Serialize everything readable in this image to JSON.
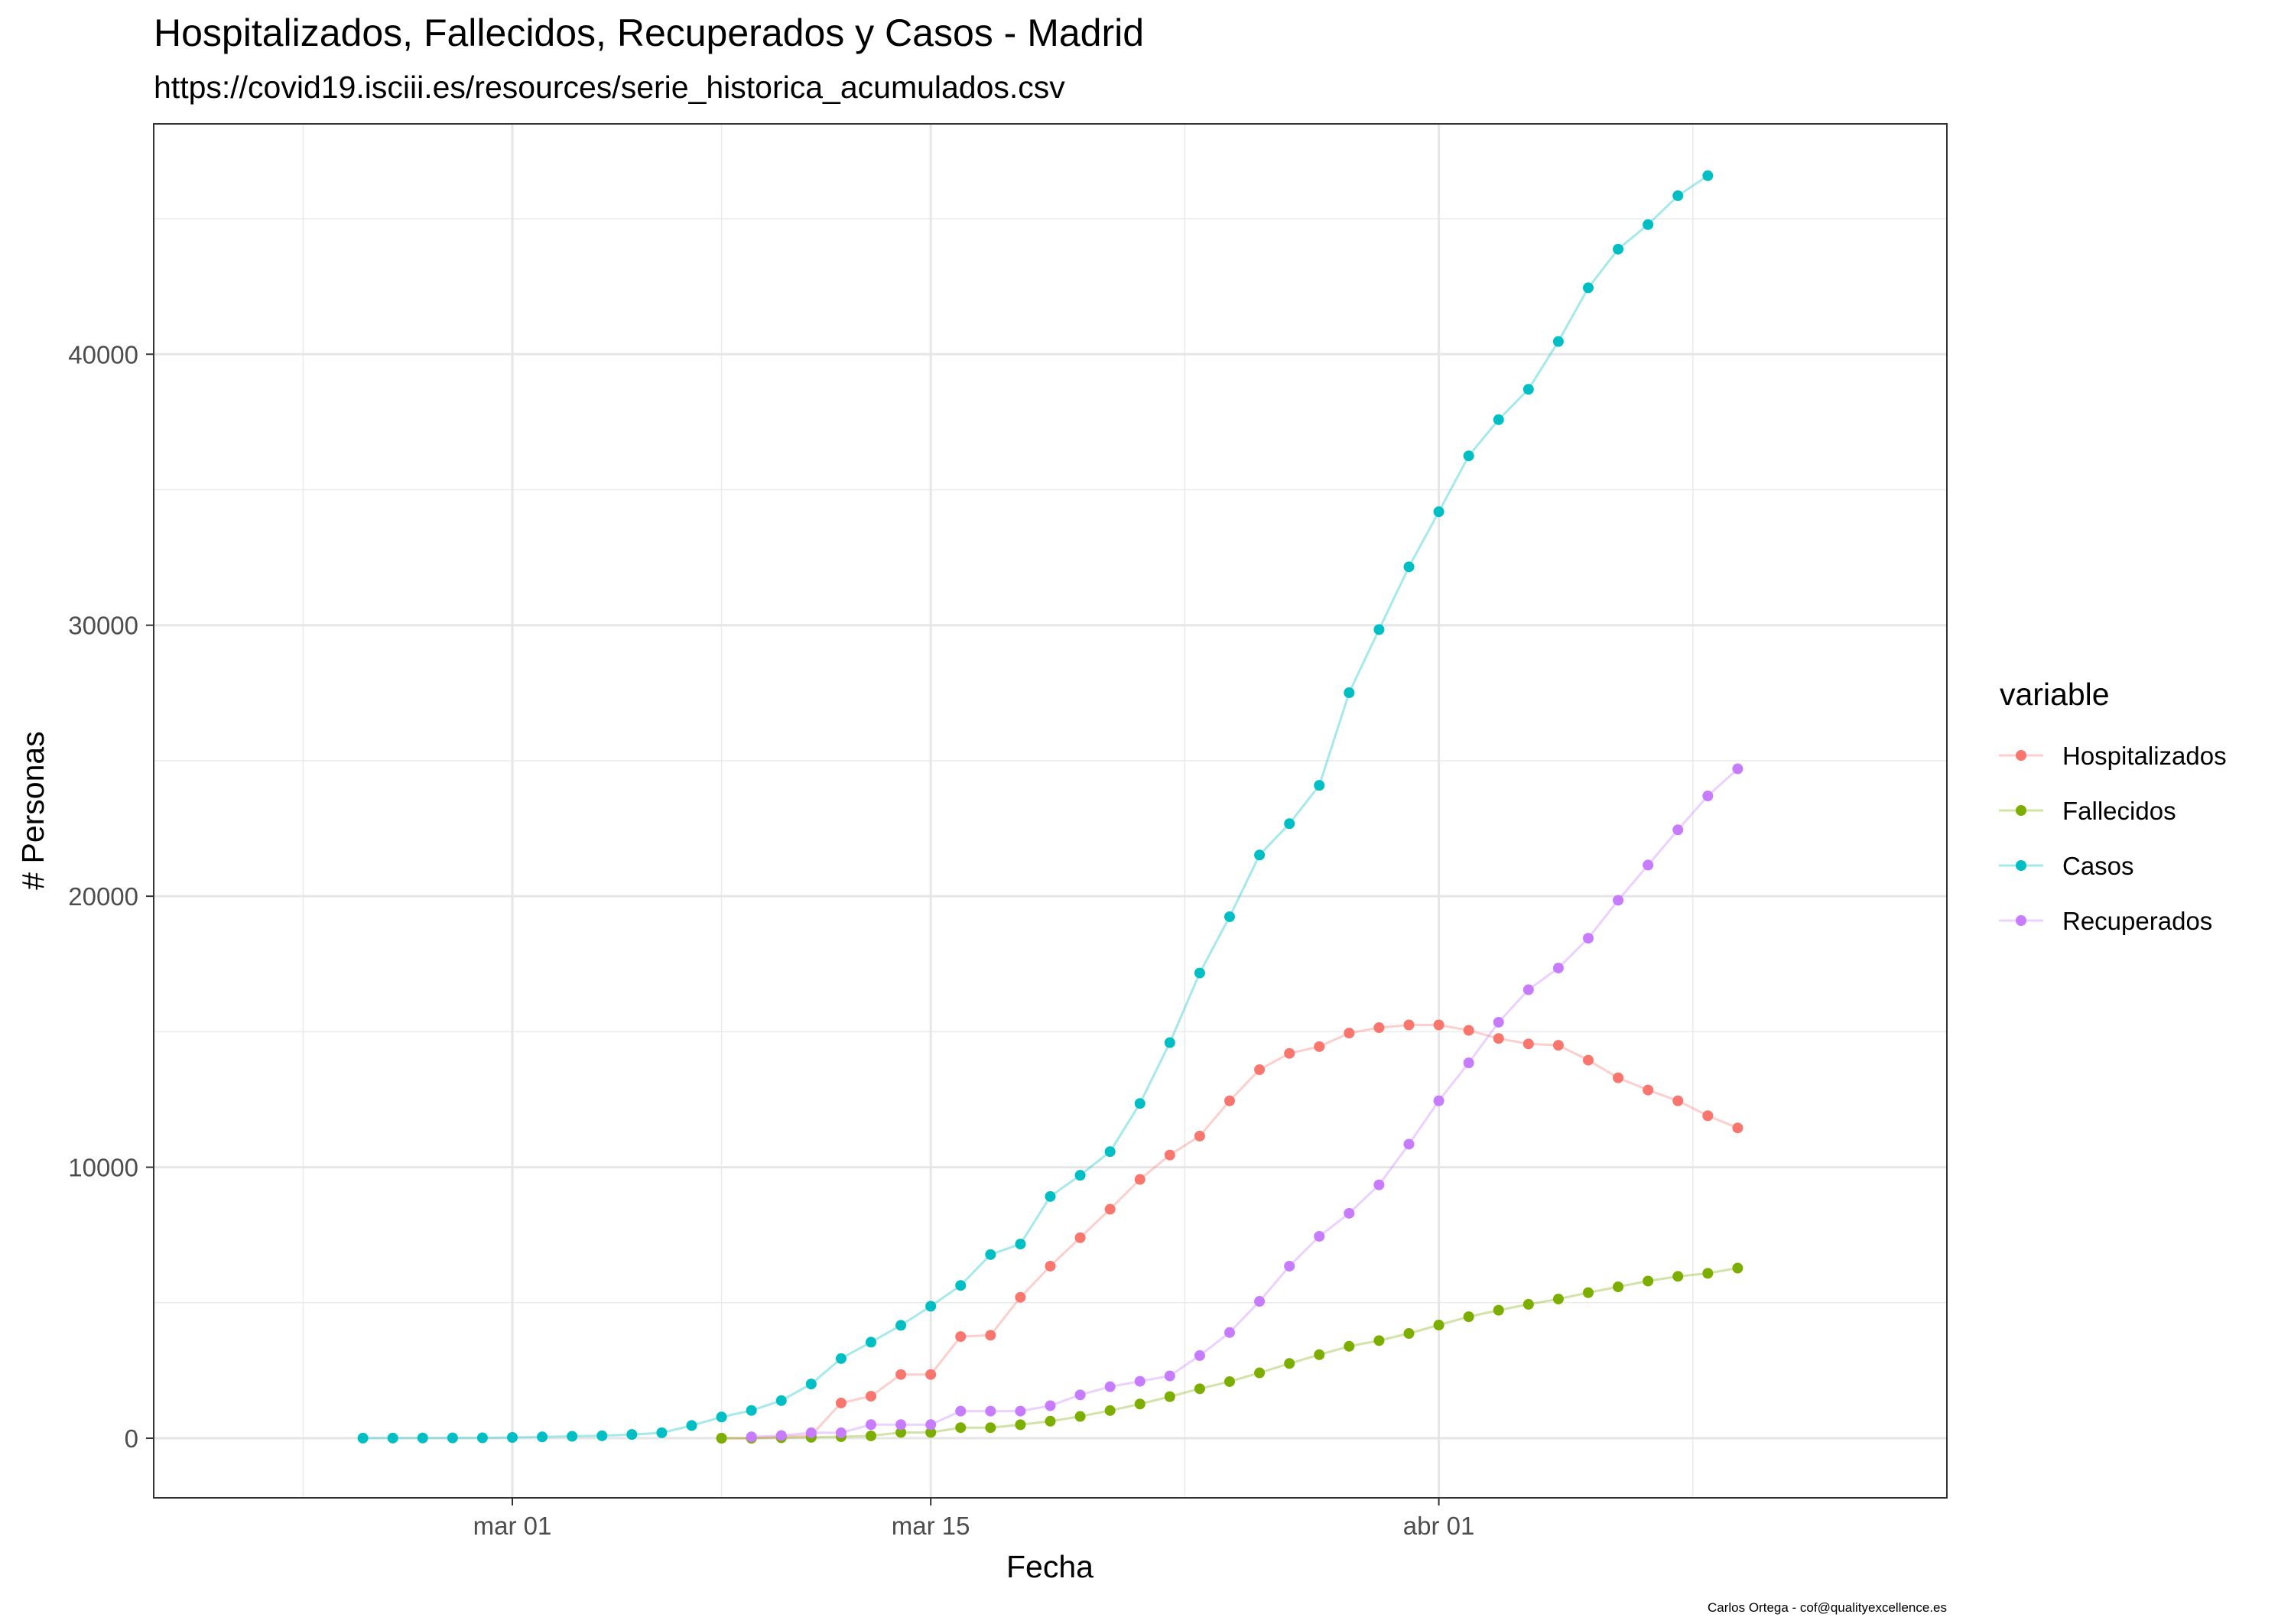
{
  "chart_data": {
    "type": "line",
    "title": "Hospitalizados, Fallecidos, Recuperados y Casos - Madrid",
    "subtitle": "https://covid19.isciii.es/resources/serie_historica_acumulados.csv",
    "xlabel": "Fecha",
    "ylabel": "# Personas",
    "caption": "Carlos Ortega - cof@qualityexcellence.es",
    "legend_title": "variable",
    "legend_position": "right",
    "grid": true,
    "x_ticks": [
      {
        "date": "2020-03-01",
        "label": "mar 01"
      },
      {
        "date": "2020-03-15",
        "label": "mar 15"
      },
      {
        "date": "2020-04-01",
        "label": "abr 01"
      }
    ],
    "x_range": [
      "2020-02-18",
      "2020-04-18"
    ],
    "ylim": [
      -2200,
      48500
    ],
    "y_ticks": [
      0,
      10000,
      20000,
      30000,
      40000
    ],
    "series": [
      {
        "name": "Hospitalizados",
        "color": "#F8766D",
        "start": "2020-03-08",
        "values": [
          0,
          0,
          50,
          100,
          1300,
          1550,
          2350,
          2350,
          3750,
          3800,
          5200,
          6350,
          7400,
          8450,
          9550,
          10450,
          11150,
          12450,
          13600,
          14200,
          14450,
          14950,
          15150,
          15250,
          15250,
          15050,
          14750,
          14550,
          14500,
          13950,
          13300,
          12850,
          12450,
          11900,
          11450
        ]
      },
      {
        "name": "Fallecidos",
        "color": "#7CAE00",
        "start": "2020-03-08",
        "values": [
          0,
          0,
          16,
          31,
          56,
          86,
          213,
          213,
          390,
          390,
          498,
          628,
          804,
          1021,
          1263,
          1535,
          1825,
          2090,
          2412,
          2757,
          3082,
          3392,
          3603,
          3865,
          4175,
          4483,
          4723,
          4941,
          5136,
          5371,
          5586,
          5800,
          5972,
          6084,
          6278
        ]
      },
      {
        "name": "Casos",
        "color": "#00BFC4",
        "start": "2020-02-25",
        "values": [
          3,
          5,
          8,
          10,
          15,
          29,
          49,
          70,
          90,
          137,
          202,
          469,
          782,
          1024,
          1388,
          2000,
          2940,
          3544,
          4165,
          4871,
          5637,
          6777,
          7165,
          8921,
          9702,
          10575,
          12352,
          14597,
          17166,
          19243,
          21520,
          22677,
          24090,
          27509,
          29840,
          32155,
          34188,
          36249,
          37584,
          38705,
          40469,
          42450,
          43877,
          44783,
          45849,
          46587
        ]
      },
      {
        "name": "Recuperados",
        "color": "#C77CFF",
        "start": "2020-03-09",
        "values": [
          50,
          100,
          200,
          200,
          500,
          500,
          500,
          1000,
          1000,
          1000,
          1200,
          1600,
          1900,
          2100,
          2300,
          3050,
          3900,
          5050,
          6350,
          7450,
          8300,
          9350,
          10850,
          12450,
          13850,
          15350,
          16550,
          17350,
          18450,
          19850,
          21150,
          22450,
          23700,
          24700
        ]
      }
    ]
  }
}
